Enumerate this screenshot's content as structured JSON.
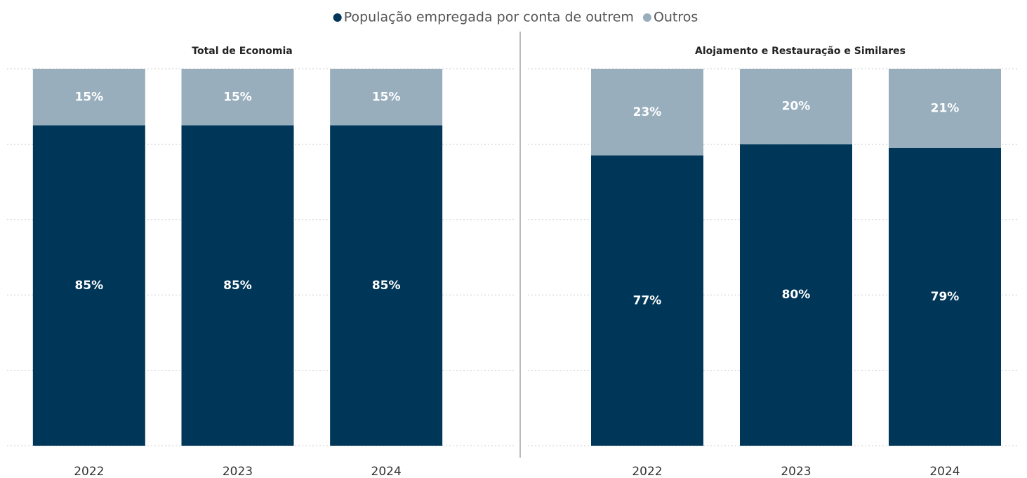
{
  "chart_data": [
    {
      "type": "bar",
      "stacked": true,
      "title": "Total de Economia",
      "categories": [
        "2022",
        "2023",
        "2024"
      ],
      "series": [
        {
          "name": "População empregada por conta de outrem",
          "color": "#003658",
          "values": [
            85,
            85,
            85
          ],
          "value_labels": [
            "85%",
            "85%",
            "85%"
          ]
        },
        {
          "name": "Outros",
          "color": "#98aebd",
          "values": [
            15,
            15,
            15
          ],
          "value_labels": [
            "15%",
            "15%",
            "15%"
          ]
        }
      ],
      "ylim": [
        0,
        100
      ],
      "yticks": [
        0,
        20,
        40,
        60,
        80,
        100
      ],
      "grid": true,
      "legend": "top"
    },
    {
      "type": "bar",
      "stacked": true,
      "title": "Alojamento e Restauração e Similares",
      "categories": [
        "2022",
        "2023",
        "2024"
      ],
      "series": [
        {
          "color": "#003658",
          "values": [
            77,
            80,
            79
          ],
          "value_labels": [
            "77%",
            "80%",
            "79%"
          ]
        },
        {
          "color": "#98aebd",
          "values": [
            23,
            20,
            21
          ],
          "value_labels": [
            "23%",
            "20%",
            "21%"
          ]
        }
      ],
      "ylim": [
        0,
        100
      ],
      "yticks": [
        0,
        20,
        40,
        60,
        80,
        100
      ],
      "grid": true
    }
  ]
}
